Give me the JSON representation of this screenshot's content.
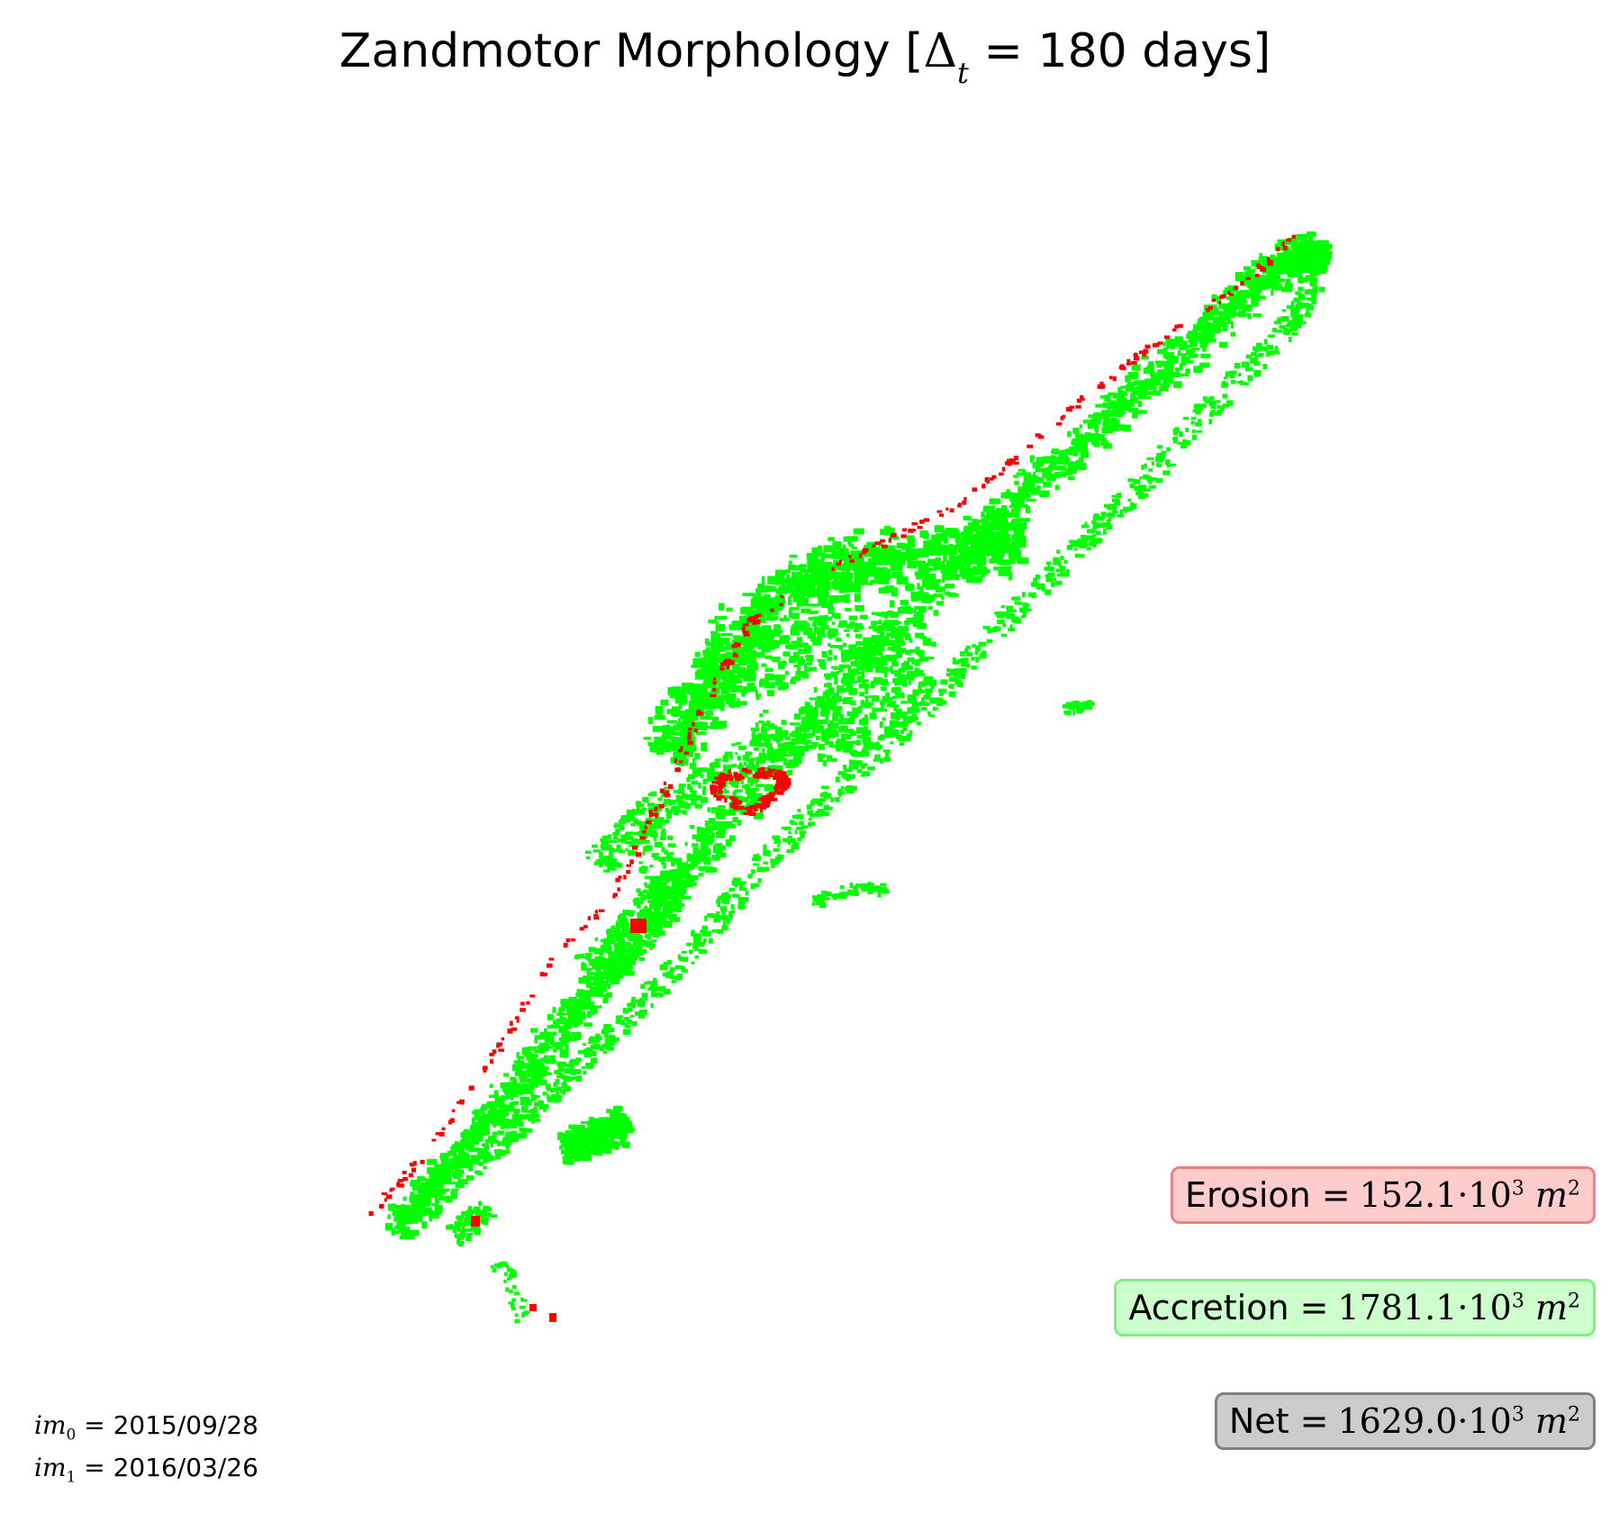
{
  "title": {
    "prefix": "Zandmotor Morphology [",
    "delta_symbol": "Δ",
    "delta_subscript": "t",
    "suffix": " = 180 days]"
  },
  "legend": {
    "erosion": {
      "label": "Erosion =",
      "value": "152.1",
      "exponent_base": "·10",
      "exponent": "3",
      "unit": "m",
      "unit_power": "2"
    },
    "accretion": {
      "label": "Accretion =",
      "value": "1781.1",
      "exponent_base": "·10",
      "exponent": "3",
      "unit": "m",
      "unit_power": "2"
    },
    "net": {
      "label": "Net =",
      "value": "1629.0",
      "exponent_base": "·10",
      "exponent": "3",
      "unit": "m",
      "unit_power": "2"
    }
  },
  "images": [
    {
      "label": "im",
      "index": "0",
      "date": "= 2015/09/28"
    },
    {
      "label": "im",
      "index": "1",
      "date": "= 2016/03/26"
    }
  ],
  "colors": {
    "erosion": "#ff0000",
    "accretion": "#00ff00",
    "erosion_box_fill": "#ffcccc",
    "accretion_box_fill": "#ccffcc",
    "net_box_fill": "#cccccc"
  }
}
